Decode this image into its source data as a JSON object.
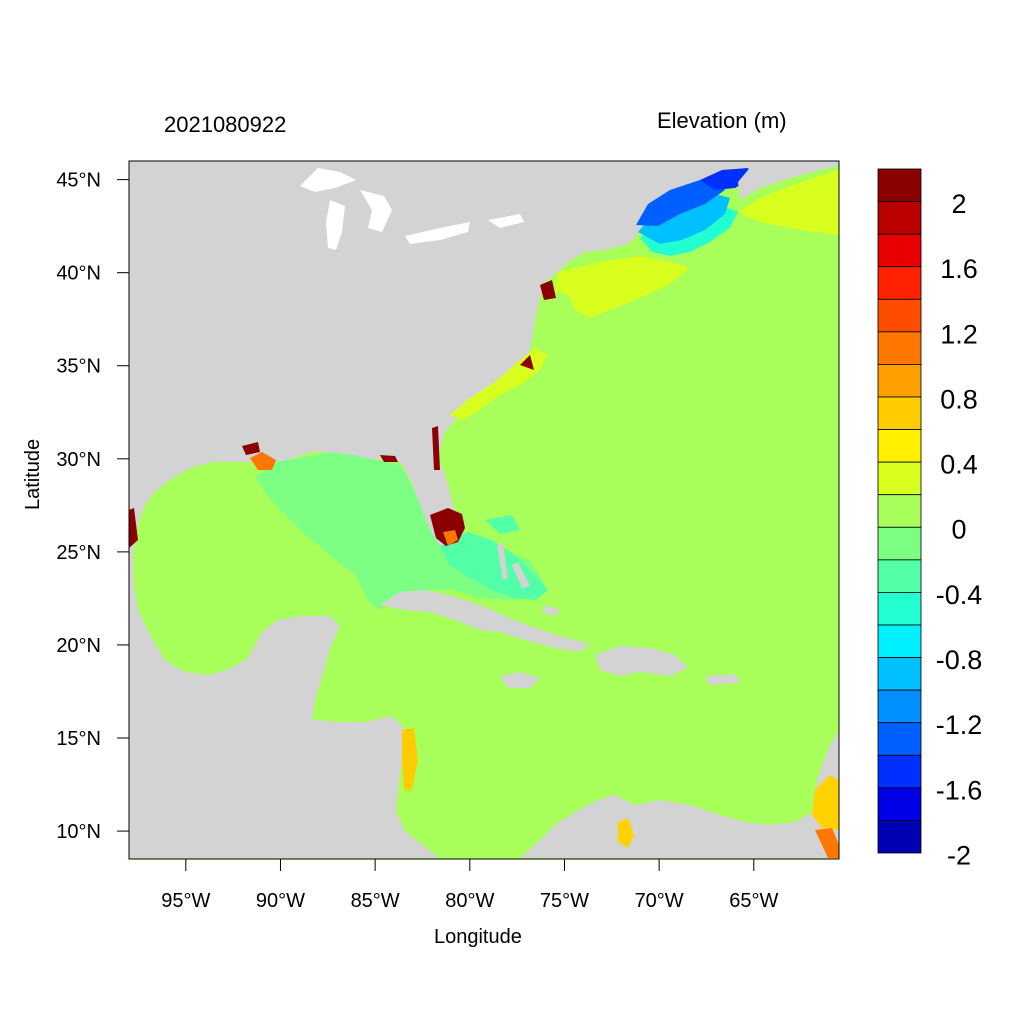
{
  "plot": {
    "left_title": "2021080922",
    "right_title": "Elevation (m)",
    "x_axis_label": "Longitude",
    "y_axis_label": "Latitude"
  },
  "map": {
    "lon_range": [
      -98,
      -60.5
    ],
    "lat_range": [
      8.5,
      46
    ],
    "lon_ticks": [
      {
        "value": -95,
        "label": "95°W"
      },
      {
        "value": -90,
        "label": "90°W"
      },
      {
        "value": -85,
        "label": "85°W"
      },
      {
        "value": -80,
        "label": "80°W"
      },
      {
        "value": -75,
        "label": "75°W"
      },
      {
        "value": -70,
        "label": "70°W"
      },
      {
        "value": -65,
        "label": "65°W"
      }
    ],
    "lat_ticks": [
      {
        "value": 45,
        "label": "45°N"
      },
      {
        "value": 40,
        "label": "40°N"
      },
      {
        "value": 35,
        "label": "35°N"
      },
      {
        "value": 30,
        "label": "30°N"
      },
      {
        "value": 25,
        "label": "25°N"
      },
      {
        "value": 20,
        "label": "20°N"
      },
      {
        "value": 15,
        "label": "15°N"
      },
      {
        "value": 10,
        "label": "10°N"
      }
    ],
    "colors": {
      "land": "#d3d3d3",
      "ocean_0_to_0_2": "#a8ff5a",
      "gulf_neg_0_2": "#7dff84",
      "gulf_neg_0_4": "#52ffa6",
      "surge_high": "#8b0000"
    }
  },
  "colorbar": {
    "colors": [
      "#8b0000",
      "#bb0000",
      "#e80000",
      "#ff2200",
      "#ff4d00",
      "#ff7700",
      "#ffa000",
      "#ffcc00",
      "#fff000",
      "#d8ff1e",
      "#a8ff5a",
      "#7dff84",
      "#52ffa6",
      "#22ffd0",
      "#00f0ff",
      "#00c0ff",
      "#0090ff",
      "#0060ff",
      "#0030ff",
      "#0000e6",
      "#0000b4"
    ],
    "labels": [
      "2",
      "1.6",
      "1.2",
      "0.8",
      "0.4",
      "0",
      "-0.4",
      "-0.8",
      "-1.2",
      "-1.6",
      "-2"
    ]
  }
}
